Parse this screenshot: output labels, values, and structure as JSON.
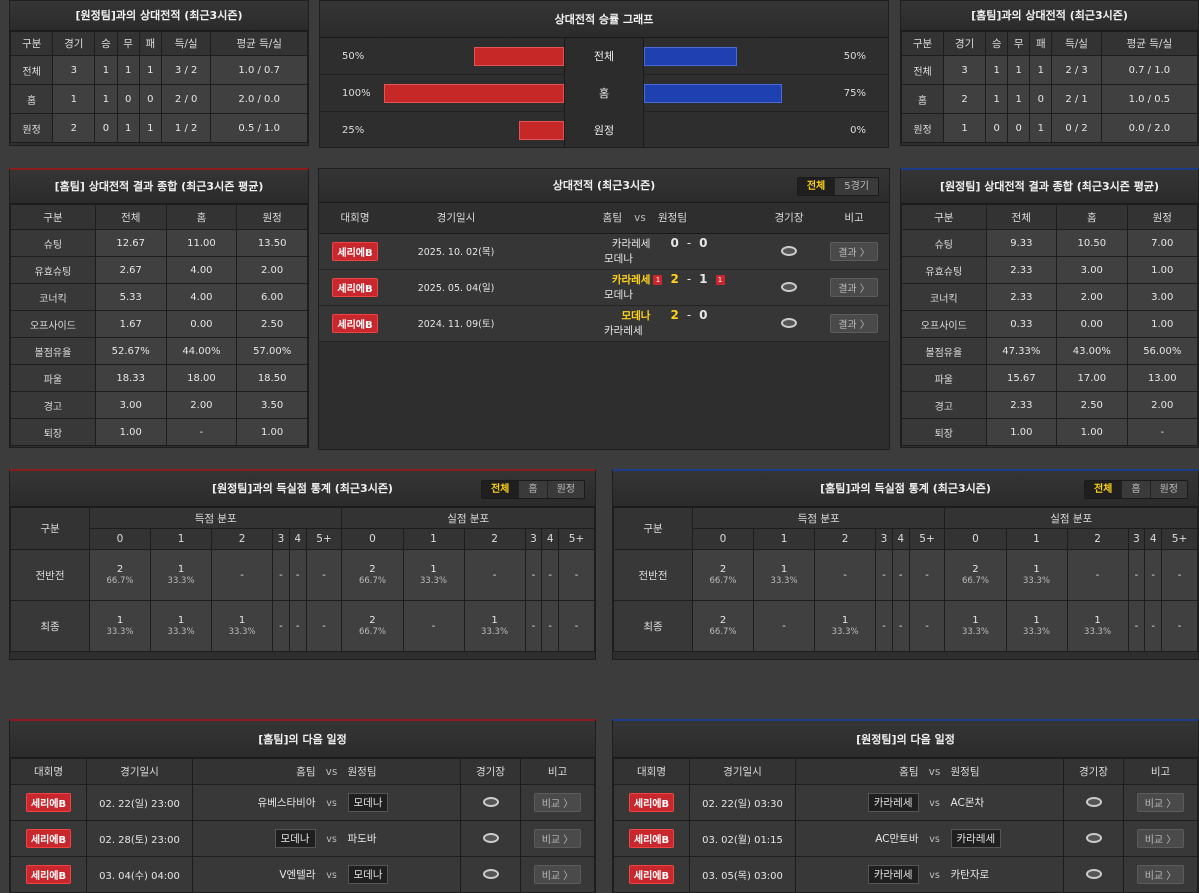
{
  "h2h_away": {
    "title": "[원정팀]과의 상대전적 (최근3시즌)",
    "headers": [
      "구분",
      "경기",
      "승",
      "무",
      "패",
      "득/실",
      "평균 득/실"
    ],
    "rows": [
      [
        "전체",
        "3",
        "1",
        "1",
        "1",
        "3 / 2",
        "1.0 / 0.7"
      ],
      [
        "홈",
        "1",
        "1",
        "0",
        "0",
        "2 / 0",
        "2.0 / 0.0"
      ],
      [
        "원정",
        "2",
        "0",
        "1",
        "1",
        "1 / 2",
        "0.5 / 1.0"
      ]
    ]
  },
  "graph": {
    "title": "상대전적 승률 그래프",
    "rows": [
      {
        "label": "전체",
        "left": "50%",
        "right": "50%",
        "left_value": 50,
        "right_value": 50
      },
      {
        "label": "홈",
        "left": "100%",
        "right": "75%",
        "left_value": 100,
        "right_value": 75
      },
      {
        "label": "원정",
        "left": "25%",
        "right": "0%",
        "left_value": 25,
        "right_value": 0
      }
    ]
  },
  "h2h_home": {
    "title": "[홈팀]과의 상대전적 (최근3시즌)",
    "headers": [
      "구분",
      "경기",
      "승",
      "무",
      "패",
      "득/실",
      "평균 득/실"
    ],
    "rows": [
      [
        "전체",
        "3",
        "1",
        "1",
        "1",
        "2 / 3",
        "0.7 / 1.0"
      ],
      [
        "홈",
        "2",
        "1",
        "1",
        "0",
        "2 / 1",
        "1.0 / 0.5"
      ],
      [
        "원정",
        "1",
        "0",
        "0",
        "1",
        "0 / 2",
        "0.0 / 2.0"
      ]
    ]
  },
  "summary_home": {
    "title": "[홈팀] 상대전적 결과 종합 (최근3시즌 평균)",
    "headers": [
      "구분",
      "전체",
      "홈",
      "원정"
    ],
    "rows": [
      [
        "슈팅",
        "12.67",
        "11.00",
        "13.50"
      ],
      [
        "유효슈팅",
        "2.67",
        "4.00",
        "2.00"
      ],
      [
        "코너킥",
        "5.33",
        "4.00",
        "6.00"
      ],
      [
        "오프사이드",
        "1.67",
        "0.00",
        "2.50"
      ],
      [
        "볼점유율",
        "52.67%",
        "44.00%",
        "57.00%"
      ],
      [
        "파울",
        "18.33",
        "18.00",
        "18.50"
      ],
      [
        "경고",
        "3.00",
        "2.00",
        "3.50"
      ],
      [
        "퇴장",
        "1.00",
        "-",
        "1.00"
      ]
    ]
  },
  "matches": {
    "title": "상대전적 (최근3시즌)",
    "tabs": [
      "전체",
      "5경기"
    ],
    "headers": {
      "league": "대회명",
      "date": "경기일시",
      "home": "홈팀",
      "vs": "vs",
      "away": "원정팀",
      "stadium": "경기장",
      "note": "비고"
    },
    "rows": [
      {
        "league": "세리에B",
        "date": "2025. 10. 02(목)",
        "home": "카라레세",
        "hs": "0",
        "sep": "-",
        "as": "0",
        "away": "모데나",
        "home_card": "",
        "away_card": "",
        "btn": "결과 〉"
      },
      {
        "league": "세리에B",
        "date": "2025. 05. 04(일)",
        "home": "카라레세",
        "hs": "2",
        "sep": "-",
        "as": "1",
        "away": "모데나",
        "home_card": "1",
        "away_card": "1",
        "btn": "결과 〉"
      },
      {
        "league": "세리에B",
        "date": "2024. 11. 09(토)",
        "home": "모데나",
        "hs": "2",
        "sep": "-",
        "as": "0",
        "away": "카라레세",
        "home_card": "",
        "away_card": "",
        "btn": "결과 〉"
      }
    ]
  },
  "summary_away": {
    "title": "[원정팀] 상대전적 결과 종합 (최근3시즌 평균)",
    "headers": [
      "구분",
      "전체",
      "홈",
      "원정"
    ],
    "rows": [
      [
        "슈팅",
        "9.33",
        "10.50",
        "7.00"
      ],
      [
        "유효슈팅",
        "2.33",
        "3.00",
        "1.00"
      ],
      [
        "코너킥",
        "2.33",
        "2.00",
        "3.00"
      ],
      [
        "오프사이드",
        "0.33",
        "0.00",
        "1.00"
      ],
      [
        "볼점유율",
        "47.33%",
        "43.00%",
        "56.00%"
      ],
      [
        "파울",
        "15.67",
        "17.00",
        "13.00"
      ],
      [
        "경고",
        "2.33",
        "2.50",
        "2.00"
      ],
      [
        "퇴장",
        "1.00",
        "1.00",
        "-"
      ]
    ]
  },
  "goals_left": {
    "title": "[원정팀]과의 득실점 통계 (최근3시즌)",
    "tabs": [
      "전체",
      "홈",
      "원정"
    ],
    "col_label": "구분",
    "scored_label": "득점 분포",
    "conceded_label": "실점 분포",
    "buckets": [
      "0",
      "1",
      "2",
      "3",
      "4",
      "5+"
    ],
    "rows": [
      {
        "label": "전반전",
        "cells": [
          [
            "2",
            "66.7%"
          ],
          [
            "1",
            "33.3%"
          ],
          [
            "-",
            ""
          ],
          [
            "-",
            ""
          ],
          [
            "-",
            ""
          ],
          [
            "-",
            ""
          ],
          [
            "2",
            "66.7%"
          ],
          [
            "1",
            "33.3%"
          ],
          [
            "-",
            ""
          ],
          [
            "-",
            ""
          ],
          [
            "-",
            ""
          ],
          [
            "-",
            ""
          ]
        ]
      },
      {
        "label": "최종",
        "cells": [
          [
            "1",
            "33.3%"
          ],
          [
            "1",
            "33.3%"
          ],
          [
            "1",
            "33.3%"
          ],
          [
            "-",
            ""
          ],
          [
            "-",
            ""
          ],
          [
            "-",
            ""
          ],
          [
            "2",
            "66.7%"
          ],
          [
            "-",
            ""
          ],
          [
            "1",
            "33.3%"
          ],
          [
            "-",
            ""
          ],
          [
            "-",
            ""
          ],
          [
            "-",
            ""
          ]
        ]
      }
    ]
  },
  "goals_right": {
    "title": "[홈팀]과의 득실점 통계 (최근3시즌)",
    "tabs": [
      "전체",
      "홈",
      "원정"
    ],
    "col_label": "구분",
    "scored_label": "득점 분포",
    "conceded_label": "실점 분포",
    "buckets": [
      "0",
      "1",
      "2",
      "3",
      "4",
      "5+"
    ],
    "rows": [
      {
        "label": "전반전",
        "cells": [
          [
            "2",
            "66.7%"
          ],
          [
            "1",
            "33.3%"
          ],
          [
            "-",
            ""
          ],
          [
            "-",
            ""
          ],
          [
            "-",
            ""
          ],
          [
            "-",
            ""
          ],
          [
            "2",
            "66.7%"
          ],
          [
            "1",
            "33.3%"
          ],
          [
            "-",
            ""
          ],
          [
            "-",
            ""
          ],
          [
            "-",
            ""
          ],
          [
            "-",
            ""
          ]
        ]
      },
      {
        "label": "최종",
        "cells": [
          [
            "2",
            "66.7%"
          ],
          [
            "-",
            ""
          ],
          [
            "1",
            "33.3%"
          ],
          [
            "-",
            ""
          ],
          [
            "-",
            ""
          ],
          [
            "-",
            ""
          ],
          [
            "1",
            "33.3%"
          ],
          [
            "1",
            "33.3%"
          ],
          [
            "1",
            "33.3%"
          ],
          [
            "-",
            ""
          ],
          [
            "-",
            ""
          ],
          [
            "-",
            ""
          ]
        ]
      }
    ]
  },
  "next_home": {
    "title": "[홈팀]의 다음 일정",
    "headers": {
      "league": "대회명",
      "date": "경기일시",
      "home": "홈팀",
      "vs": "vs",
      "away": "원정팀",
      "stadium": "경기장",
      "note": "비고"
    },
    "rows": [
      {
        "league": "세리에B",
        "date": "02. 22(일) 23:00",
        "home": "유베스타비아",
        "vs": "vs",
        "away": "모데나",
        "boxed": "away",
        "btn": "비교 〉"
      },
      {
        "league": "세리에B",
        "date": "02. 28(토) 23:00",
        "home": "모데나",
        "vs": "vs",
        "away": "파도바",
        "boxed": "home",
        "btn": "비교 〉"
      },
      {
        "league": "세리에B",
        "date": "03. 04(수) 04:00",
        "home": "V엔텔라",
        "vs": "vs",
        "away": "모데나",
        "boxed": "away",
        "btn": "비교 〉"
      }
    ]
  },
  "next_away": {
    "title": "[원정팀]의 다음 일정",
    "headers": {
      "league": "대회명",
      "date": "경기일시",
      "home": "홈팀",
      "vs": "vs",
      "away": "원정팀",
      "stadium": "경기장",
      "note": "비고"
    },
    "rows": [
      {
        "league": "세리에B",
        "date": "02. 22(일) 03:30",
        "home": "카라레세",
        "vs": "vs",
        "away": "AC몬차",
        "boxed": "home",
        "btn": "비교 〉"
      },
      {
        "league": "세리에B",
        "date": "03. 02(월) 01:15",
        "home": "AC만토바",
        "vs": "vs",
        "away": "카라레세",
        "boxed": "away",
        "btn": "비교 〉"
      },
      {
        "league": "세리에B",
        "date": "03. 05(목) 03:00",
        "home": "카라레세",
        "vs": "vs",
        "away": "카탄자로",
        "boxed": "home",
        "btn": "비교 〉"
      }
    ]
  },
  "colors": {
    "accent_red": "#c62828",
    "accent_blue": "#1e40b0",
    "highlight": "#ffd21a"
  },
  "icons": {
    "stadium": "stadium-icon",
    "card": "red-card-icon"
  }
}
